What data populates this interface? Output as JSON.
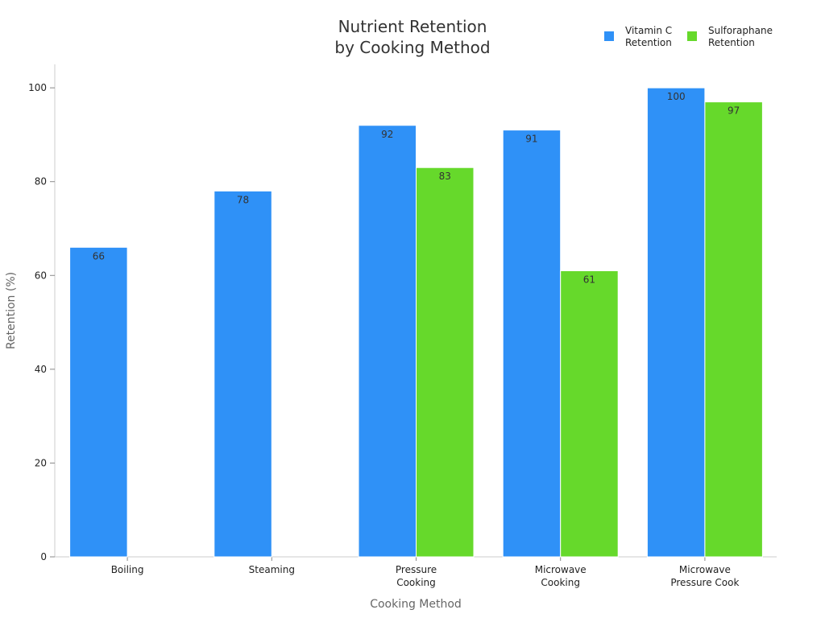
{
  "chart_data": {
    "type": "bar",
    "title": [
      "Nutrient Retention",
      "by Cooking Method"
    ],
    "xlabel": "Cooking Method",
    "ylabel": "Retention (%)",
    "ylim": [
      0,
      105
    ],
    "yticks": [
      0,
      20,
      40,
      60,
      80,
      100
    ],
    "categories": [
      [
        "Boiling"
      ],
      [
        "Steaming"
      ],
      [
        "Pressure",
        "Cooking"
      ],
      [
        "Microwave",
        "Cooking"
      ],
      [
        "Microwave",
        "Pressure Cook"
      ]
    ],
    "series": [
      {
        "name": [
          "Vitamin C",
          "Retention"
        ],
        "color": "#2f91f7",
        "values": [
          66,
          78,
          92,
          91,
          100
        ]
      },
      {
        "name": [
          "Sulforaphane",
          "Retention"
        ],
        "color": "#66d92b",
        "values": [
          null,
          null,
          83,
          61,
          97
        ]
      }
    ],
    "legend_position": "top-right",
    "grid": false,
    "data_labels": true
  }
}
